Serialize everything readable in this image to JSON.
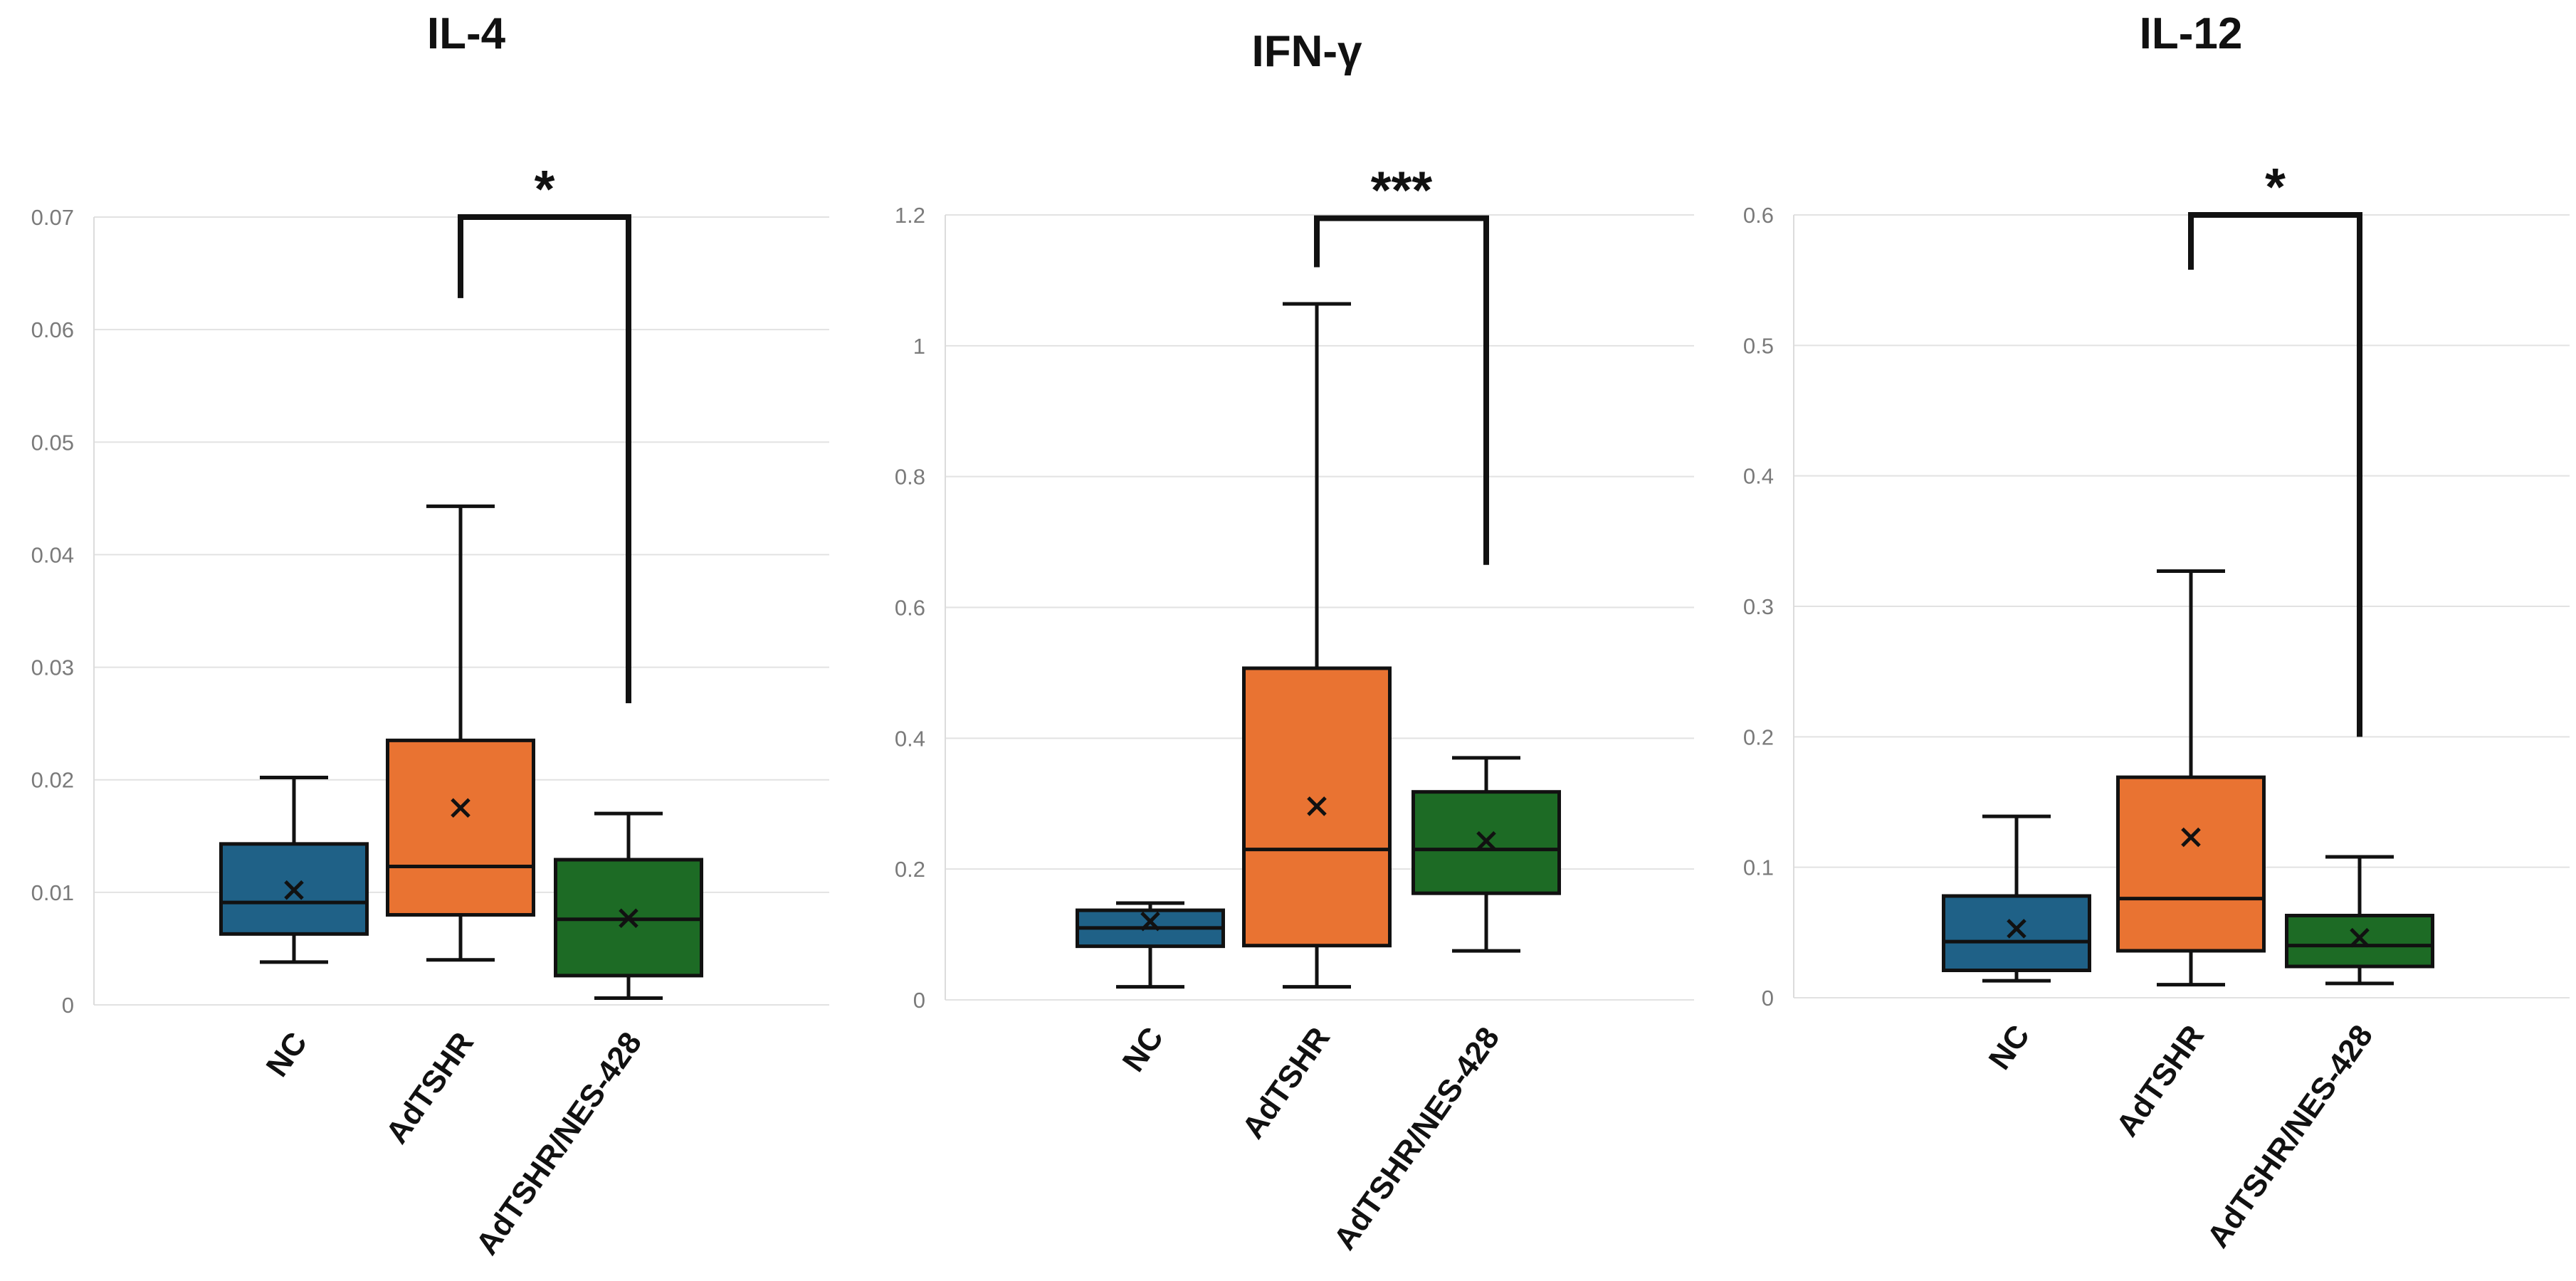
{
  "chart_data": [
    {
      "type": "box",
      "title": "IL-4",
      "xlabel": "",
      "ylabel": "",
      "ylim": [
        0,
        0.07
      ],
      "yticks": [
        0,
        0.01,
        0.02,
        0.03,
        0.04,
        0.05,
        0.06,
        0.07
      ],
      "ytick_labels": [
        "0",
        "0.01",
        "0.02",
        "0.03",
        "0.04",
        "0.05",
        "0.06",
        "0.07"
      ],
      "grid": true,
      "categories": [
        "NC",
        "AdTSHR",
        "AdTSHR/NES-428"
      ],
      "boxes": [
        {
          "name": "NC",
          "min": 0.0038,
          "q1": 0.0063,
          "median": 0.0091,
          "q3": 0.0143,
          "max": 0.0202,
          "mean": 0.0102,
          "color": "#1f6187"
        },
        {
          "name": "AdTSHR",
          "min": 0.004,
          "q1": 0.008,
          "median": 0.0123,
          "q3": 0.0235,
          "max": 0.0443,
          "mean": 0.0175,
          "color": "#e97332"
        },
        {
          "name": "AdTSHR/NES-428",
          "min": 0.0006,
          "q1": 0.0026,
          "median": 0.0076,
          "q3": 0.0129,
          "max": 0.017,
          "mean": 0.0077,
          "color": "#1d6b25"
        }
      ],
      "significance": {
        "from": 1,
        "to": 2,
        "label": "*",
        "y": 0.07,
        "left_end": 0.0628,
        "right_end": 0.0268
      }
    },
    {
      "type": "box",
      "title": "IFN-γ",
      "xlabel": "",
      "ylabel": "",
      "ylim": [
        0,
        1.2
      ],
      "yticks": [
        0,
        0.2,
        0.4,
        0.6,
        0.8,
        1.0,
        1.2
      ],
      "ytick_labels": [
        "0",
        "0.2",
        "0.4",
        "0.6",
        "0.8",
        "1",
        "1.2"
      ],
      "grid": true,
      "categories": [
        "NC",
        "AdTSHR",
        "AdTSHR/NES-428"
      ],
      "boxes": [
        {
          "name": "NC",
          "min": 0.02,
          "q1": 0.082,
          "median": 0.11,
          "q3": 0.137,
          "max": 0.148,
          "mean": 0.12,
          "color": "#1f6187"
        },
        {
          "name": "AdTSHR",
          "min": 0.02,
          "q1": 0.083,
          "median": 0.23,
          "q3": 0.507,
          "max": 1.064,
          "mean": 0.296,
          "color": "#e97332"
        },
        {
          "name": "AdTSHR/NES-428",
          "min": 0.075,
          "q1": 0.163,
          "median": 0.23,
          "q3": 0.318,
          "max": 0.37,
          "mean": 0.243,
          "color": "#1d6b25"
        }
      ],
      "significance": {
        "from": 1,
        "to": 2,
        "label": "***",
        "y": 1.195,
        "left_end": 1.12,
        "right_end": 0.665
      }
    },
    {
      "type": "box",
      "title": "IL-12",
      "xlabel": "",
      "ylabel": "",
      "ylim": [
        0,
        0.6
      ],
      "yticks": [
        0,
        0.1,
        0.2,
        0.3,
        0.4,
        0.5,
        0.6
      ],
      "ytick_labels": [
        "0",
        "0.1",
        "0.2",
        "0.3",
        "0.4",
        "0.5",
        "0.6"
      ],
      "grid": true,
      "categories": [
        "NC",
        "AdTSHR",
        "AdTSHR/NES-428"
      ],
      "boxes": [
        {
          "name": "NC",
          "min": 0.013,
          "q1": 0.021,
          "median": 0.043,
          "q3": 0.078,
          "max": 0.139,
          "mean": 0.053,
          "color": "#1f6187"
        },
        {
          "name": "AdTSHR",
          "min": 0.01,
          "q1": 0.036,
          "median": 0.076,
          "q3": 0.169,
          "max": 0.327,
          "mean": 0.123,
          "color": "#e97332"
        },
        {
          "name": "AdTSHR/NES-428",
          "min": 0.011,
          "q1": 0.024,
          "median": 0.04,
          "q3": 0.063,
          "max": 0.108,
          "mean": 0.046,
          "color": "#1d6b25"
        }
      ],
      "significance": {
        "from": 1,
        "to": 2,
        "label": "*",
        "y": 0.6,
        "left_end": 0.558,
        "right_end": 0.2
      }
    }
  ]
}
